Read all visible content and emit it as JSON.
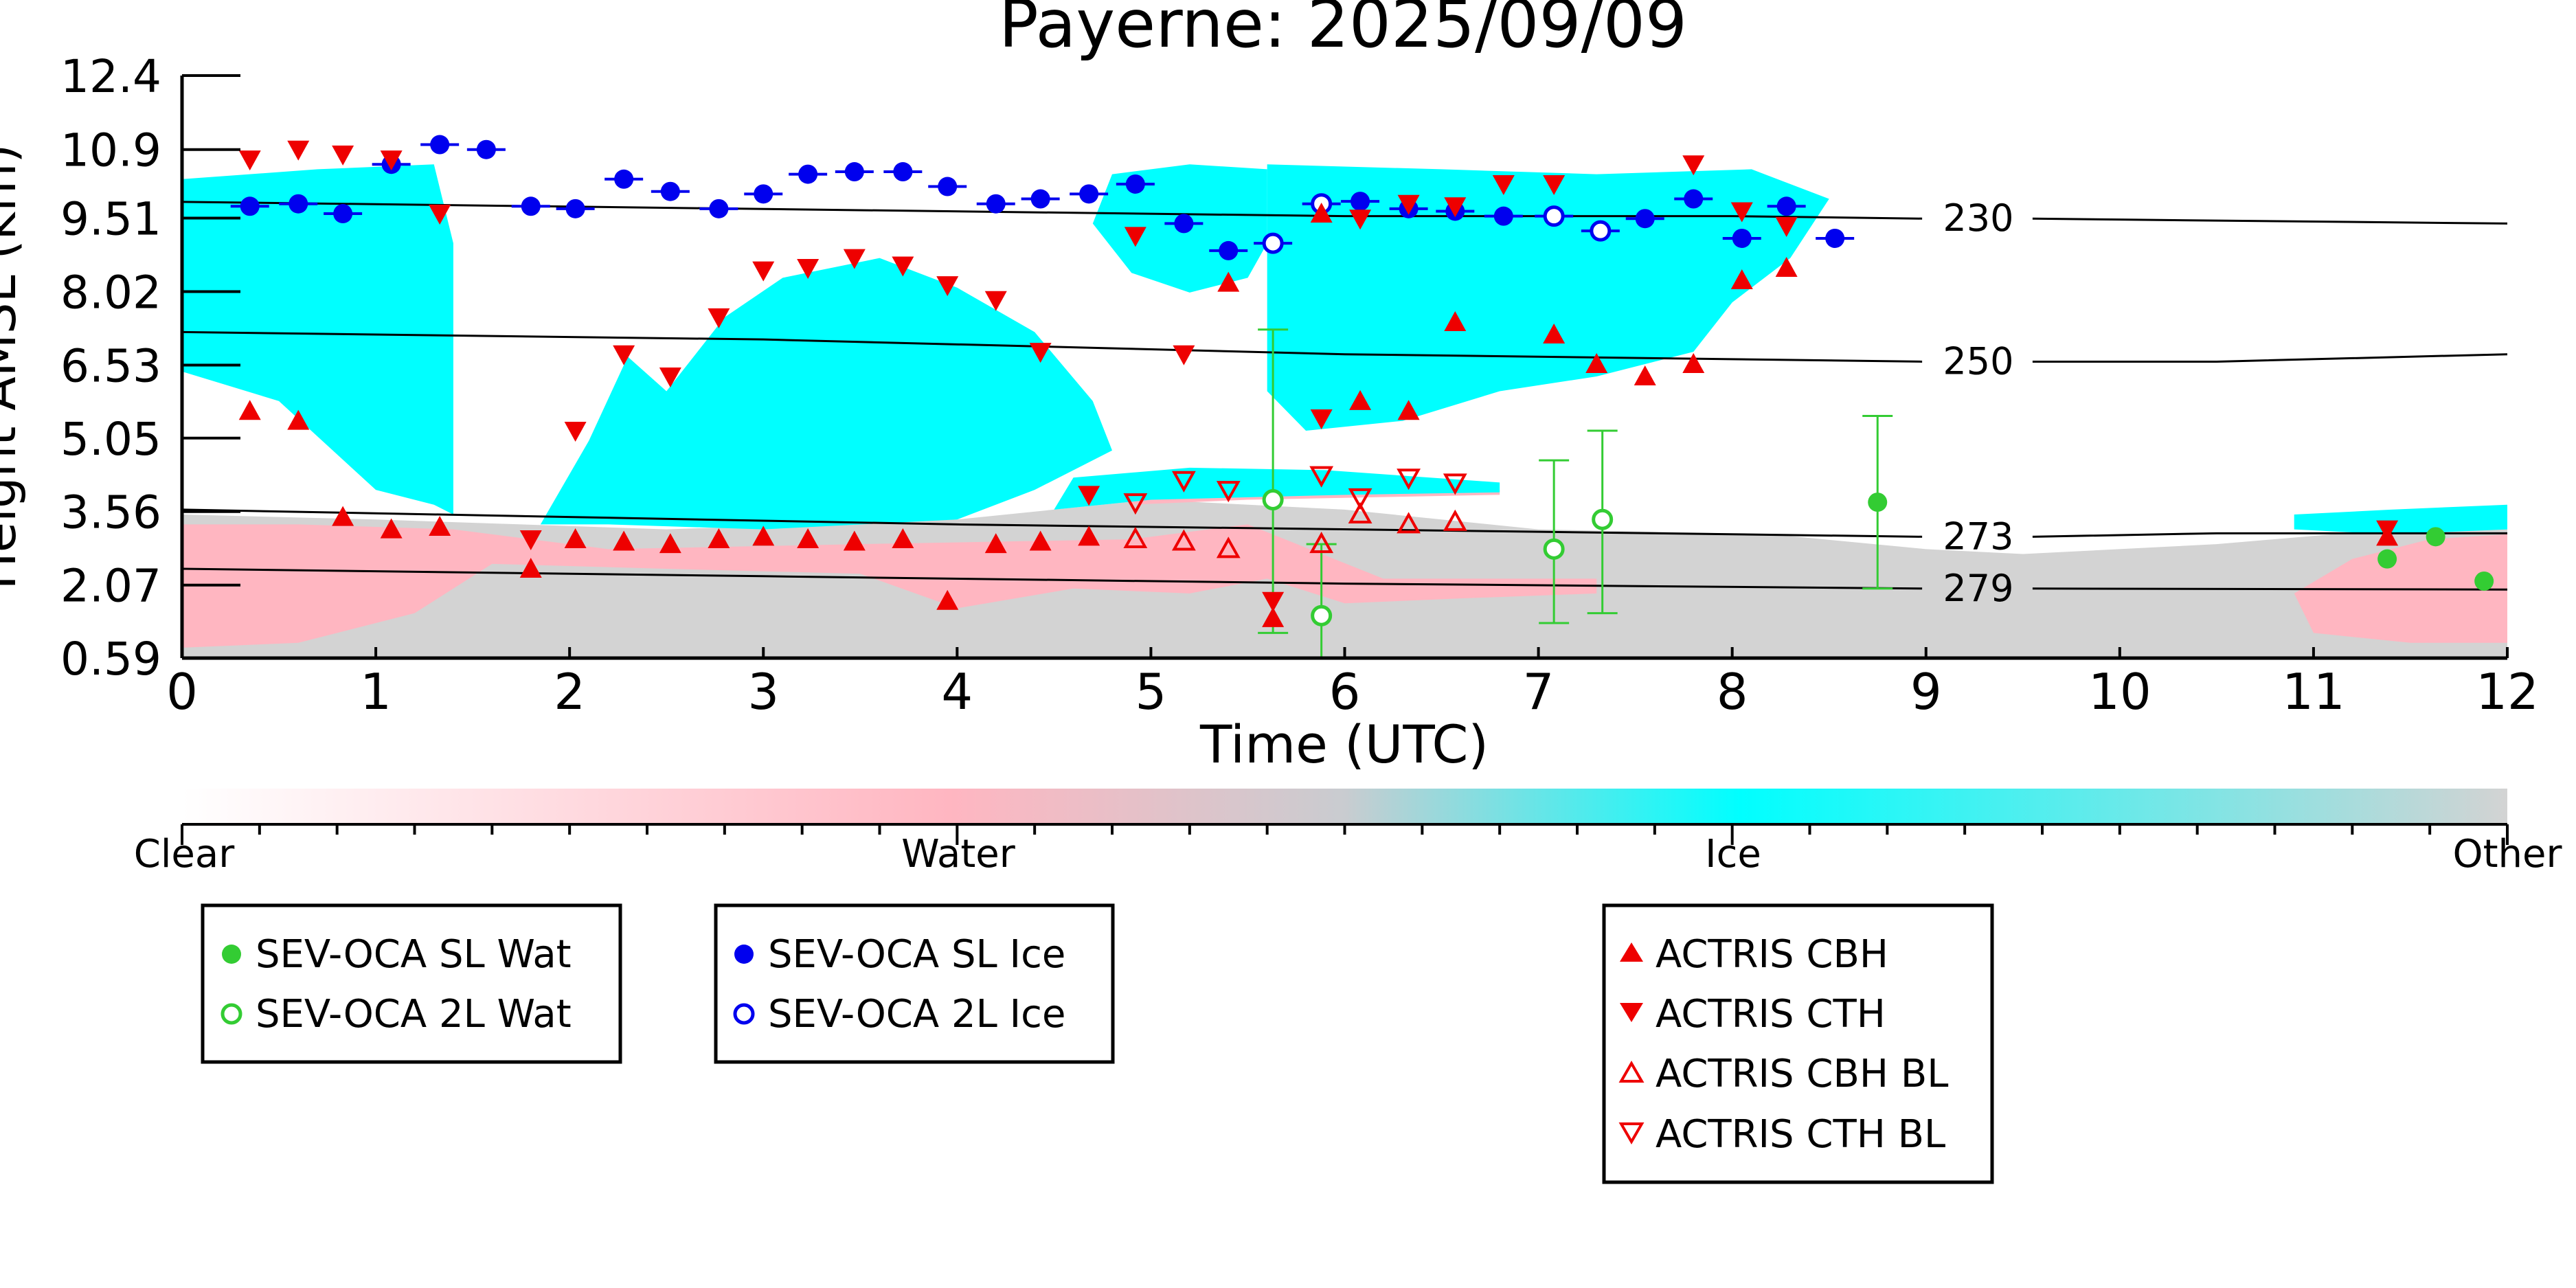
{
  "chart_data": {
    "type": "scatter",
    "title": "Payerne: 2025/09/09",
    "xlabel": "Time (UTC)",
    "ylabel": "Height AMSL (km)",
    "xlim": [
      0,
      12
    ],
    "ylim": [
      0.59,
      12.4
    ],
    "xticks": [
      "0",
      "1",
      "2",
      "3",
      "4",
      "5",
      "6",
      "7",
      "8",
      "9",
      "10",
      "11",
      "12"
    ],
    "yticks": [
      "0.59",
      "2.07",
      "3.56",
      "5.05",
      "6.53",
      "8.02",
      "9.51",
      "10.9",
      "12.4"
    ],
    "colors": {
      "water": "#ffb6c1",
      "ice": "#00ffff",
      "other": "#d3d3d3",
      "sev_wat": "#33cc33",
      "sev_ice": "#0000ee",
      "actris": "#ee0000",
      "isotherm": "#000000"
    },
    "isotherms": [
      {
        "label": "230",
        "points": [
          [
            0,
            9.84
          ],
          [
            6,
            9.55
          ],
          [
            8,
            9.55
          ],
          [
            9,
            9.5
          ],
          [
            10,
            9.48
          ],
          [
            12,
            9.4
          ]
        ]
      },
      {
        "label": "250",
        "points": [
          [
            0,
            7.2
          ],
          [
            3,
            7.05
          ],
          [
            6,
            6.75
          ],
          [
            9,
            6.6
          ],
          [
            10.5,
            6.6
          ],
          [
            12,
            6.75
          ]
        ]
      },
      {
        "label": "273",
        "points": [
          [
            0,
            3.6
          ],
          [
            4,
            3.3
          ],
          [
            7,
            3.15
          ],
          [
            9,
            3.05
          ],
          [
            10.5,
            3.12
          ],
          [
            12,
            3.12
          ]
        ]
      },
      {
        "label": "279",
        "points": [
          [
            0,
            2.4
          ],
          [
            3,
            2.25
          ],
          [
            6,
            2.1
          ],
          [
            9,
            2.0
          ],
          [
            12,
            1.98
          ]
        ]
      }
    ],
    "series": [
      {
        "name": "SEV-OCA SL Wat",
        "marker": "filled-circle",
        "points": [
          [
            5.63,
            3.8
          ],
          [
            8.75,
            3.75
          ],
          [
            11.38,
            2.6
          ],
          [
            11.63,
            3.05
          ],
          [
            11.88,
            2.15
          ]
        ]
      },
      {
        "name": "SEV-OCA 2L Wat",
        "marker": "open-circle",
        "points": [
          [
            5.63,
            3.8
          ],
          [
            5.88,
            1.45
          ],
          [
            7.08,
            2.8
          ],
          [
            7.33,
            3.4
          ]
        ],
        "errors": [
          [
            5.63,
            1.1,
            7.25
          ],
          [
            5.88,
            0.6,
            2.9
          ],
          [
            7.08,
            1.3,
            4.6
          ],
          [
            7.33,
            1.5,
            5.2
          ],
          [
            8.75,
            2.0,
            5.5
          ]
        ]
      },
      {
        "name": "SEV-OCA SL Ice",
        "marker": "filled-circle",
        "points": [
          [
            0.35,
            9.75
          ],
          [
            0.6,
            9.8
          ],
          [
            0.83,
            9.6
          ],
          [
            1.08,
            10.6
          ],
          [
            1.33,
            11.0
          ],
          [
            1.57,
            10.9
          ],
          [
            1.8,
            9.75
          ],
          [
            2.03,
            9.7
          ],
          [
            2.28,
            10.3
          ],
          [
            2.52,
            10.05
          ],
          [
            2.77,
            9.7
          ],
          [
            3.0,
            10.0
          ],
          [
            3.23,
            10.4
          ],
          [
            3.47,
            10.45
          ],
          [
            3.72,
            10.45
          ],
          [
            3.95,
            10.15
          ],
          [
            4.2,
            9.8
          ],
          [
            4.43,
            9.9
          ],
          [
            4.68,
            10.0
          ],
          [
            4.92,
            10.2
          ],
          [
            5.17,
            9.4
          ],
          [
            5.4,
            8.85
          ],
          [
            6.08,
            9.85
          ],
          [
            6.33,
            9.7
          ],
          [
            6.57,
            9.65
          ],
          [
            6.82,
            9.55
          ],
          [
            7.55,
            9.5
          ],
          [
            7.8,
            9.9
          ],
          [
            8.05,
            9.1
          ],
          [
            8.28,
            9.75
          ],
          [
            8.53,
            9.1
          ]
        ]
      },
      {
        "name": "SEV-OCA 2L Ice",
        "marker": "open-circle",
        "points": [
          [
            5.63,
            9.0
          ],
          [
            5.88,
            9.8
          ],
          [
            7.08,
            9.55
          ],
          [
            7.32,
            9.25
          ]
        ]
      },
      {
        "name": "ACTRIS CBH",
        "marker": "triangle-up",
        "points": [
          [
            0.35,
            5.6
          ],
          [
            0.6,
            5.4
          ],
          [
            0.83,
            3.45
          ],
          [
            1.08,
            3.2
          ],
          [
            1.33,
            3.25
          ],
          [
            1.8,
            2.4
          ],
          [
            2.03,
            3.0
          ],
          [
            2.28,
            2.95
          ],
          [
            2.52,
            2.9
          ],
          [
            2.77,
            3.0
          ],
          [
            3.0,
            3.05
          ],
          [
            3.23,
            3.0
          ],
          [
            3.47,
            2.95
          ],
          [
            3.72,
            3.0
          ],
          [
            3.95,
            1.75
          ],
          [
            4.2,
            2.9
          ],
          [
            4.43,
            2.95
          ],
          [
            4.68,
            3.05
          ],
          [
            5.4,
            8.2
          ],
          [
            5.63,
            1.4
          ],
          [
            5.88,
            9.6
          ],
          [
            6.08,
            5.8
          ],
          [
            6.33,
            5.6
          ],
          [
            6.57,
            7.4
          ],
          [
            7.08,
            7.15
          ],
          [
            7.3,
            6.55
          ],
          [
            7.55,
            6.3
          ],
          [
            7.8,
            6.55
          ],
          [
            8.05,
            8.25
          ],
          [
            8.28,
            8.5
          ],
          [
            11.38,
            3.05
          ]
        ]
      },
      {
        "name": "ACTRIS CTH",
        "marker": "triangle-down",
        "points": [
          [
            0.35,
            10.7
          ],
          [
            0.6,
            10.9
          ],
          [
            0.83,
            10.8
          ],
          [
            1.08,
            10.7
          ],
          [
            1.33,
            9.6
          ],
          [
            1.8,
            3.0
          ],
          [
            2.03,
            5.2
          ],
          [
            2.28,
            6.75
          ],
          [
            2.52,
            6.3
          ],
          [
            2.77,
            7.5
          ],
          [
            3.0,
            8.45
          ],
          [
            3.23,
            8.5
          ],
          [
            3.47,
            8.7
          ],
          [
            3.72,
            8.55
          ],
          [
            3.95,
            8.15
          ],
          [
            4.2,
            7.85
          ],
          [
            4.43,
            6.8
          ],
          [
            4.68,
            3.9
          ],
          [
            4.92,
            9.15
          ],
          [
            5.17,
            6.75
          ],
          [
            5.63,
            1.75
          ],
          [
            5.88,
            5.45
          ],
          [
            6.08,
            9.5
          ],
          [
            6.33,
            9.8
          ],
          [
            6.57,
            9.75
          ],
          [
            6.82,
            10.2
          ],
          [
            7.08,
            10.2
          ],
          [
            7.8,
            10.6
          ],
          [
            8.05,
            9.65
          ],
          [
            8.28,
            9.35
          ],
          [
            11.38,
            3.2
          ]
        ]
      },
      {
        "name": "ACTRIS CBH BL",
        "marker": "open-triangle-up",
        "points": [
          [
            4.92,
            3.0
          ],
          [
            5.17,
            2.95
          ],
          [
            5.4,
            2.8
          ],
          [
            5.88,
            2.9
          ],
          [
            6.08,
            3.5
          ],
          [
            6.33,
            3.3
          ],
          [
            6.57,
            3.35
          ]
        ]
      },
      {
        "name": "ACTRIS CTH BL",
        "marker": "open-triangle-down",
        "points": [
          [
            4.92,
            3.75
          ],
          [
            5.17,
            4.2
          ],
          [
            5.4,
            4.0
          ],
          [
            5.88,
            4.3
          ],
          [
            6.08,
            3.85
          ],
          [
            6.33,
            4.25
          ],
          [
            6.57,
            4.15
          ]
        ]
      }
    ],
    "colorbar": {
      "labels": [
        "Clear",
        "Water",
        "Ice",
        "Other"
      ]
    },
    "legends": [
      [
        "SEV-OCA SL Wat",
        "SEV-OCA 2L Wat"
      ],
      [
        "SEV-OCA SL Ice",
        "SEV-OCA 2L Ice"
      ],
      [
        "ACTRIS CBH",
        "ACTRIS CTH",
        "ACTRIS CBH BL",
        "ACTRIS CTH BL"
      ]
    ]
  }
}
